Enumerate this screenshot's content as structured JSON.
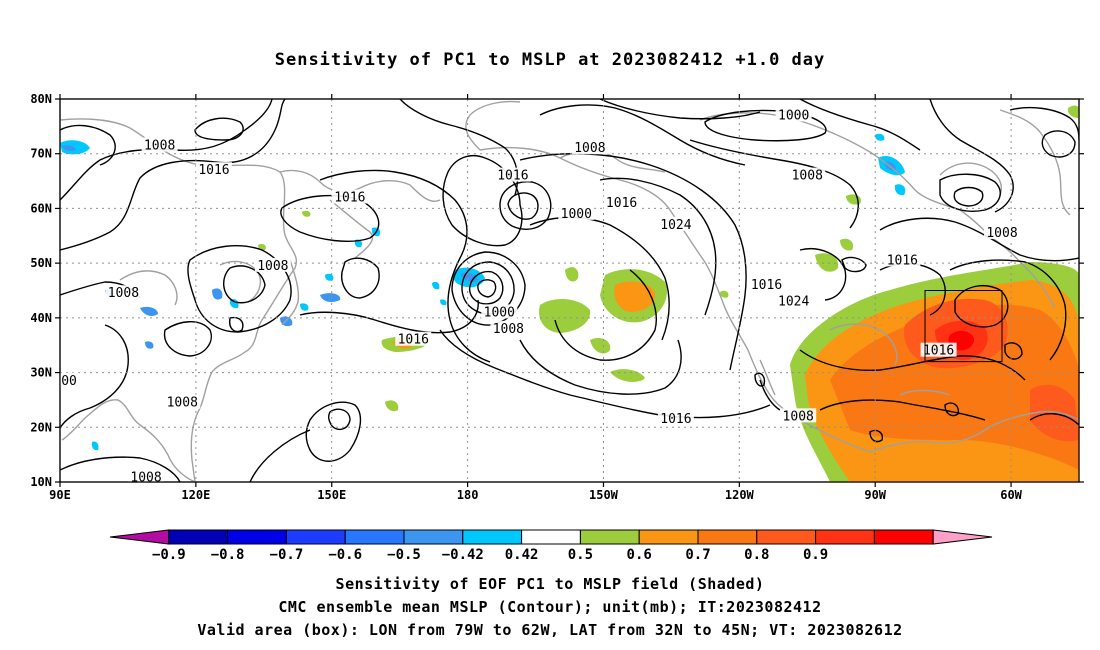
{
  "title": "Sensitivity of PC1 to MSLP at 2023082412 +1.0 day",
  "map": {
    "lat_ticks": [
      "80N",
      "70N",
      "60N",
      "50N",
      "40N",
      "30N",
      "20N",
      "10N"
    ],
    "lon_ticks": [
      "90E",
      "120E",
      "150E",
      "180",
      "150W",
      "120W",
      "90W",
      "60W"
    ],
    "contour_labels": [
      {
        "text": "1008",
        "lon": 112,
        "lat": 71.5
      },
      {
        "text": "1016",
        "lon": 124,
        "lat": 67
      },
      {
        "text": "1008",
        "lon": 104,
        "lat": 44.5
      },
      {
        "text": "1008",
        "lon": 137,
        "lat": 49.5
      },
      {
        "text": "1016",
        "lon": 154,
        "lat": 62
      },
      {
        "text": "1016",
        "lon": 168,
        "lat": 36
      },
      {
        "text": "1016",
        "lon": 190,
        "lat": 66
      },
      {
        "text": "1008",
        "lon": 207,
        "lat": 71
      },
      {
        "text": "1000",
        "lon": 204,
        "lat": 59
      },
      {
        "text": "1000",
        "lon": 187,
        "lat": 41
      },
      {
        "text": "1008",
        "lon": 189,
        "lat": 38
      },
      {
        "text": "1016",
        "lon": 214,
        "lat": 61
      },
      {
        "text": "1024",
        "lon": 226,
        "lat": 57
      },
      {
        "text": "1016",
        "lon": 226,
        "lat": 21.5
      },
      {
        "text": "1000",
        "lon": 252,
        "lat": 77
      },
      {
        "text": "1008",
        "lon": 255,
        "lat": 66
      },
      {
        "text": "1016",
        "lon": 246,
        "lat": 46
      },
      {
        "text": "1024",
        "lon": 252,
        "lat": 43
      },
      {
        "text": "1008",
        "lon": 253,
        "lat": 22
      },
      {
        "text": "1016",
        "lon": 276,
        "lat": 50.5
      },
      {
        "text": "1008",
        "lon": 298,
        "lat": 55.5
      },
      {
        "text": "1016",
        "lon": 284,
        "lat": 34
      },
      {
        "text": "1008",
        "lon": 117,
        "lat": 24.5
      },
      {
        "text": "1008",
        "lon": 109,
        "lat": 10.8
      },
      {
        "text": "00",
        "lon": 92,
        "lat": 28.5
      }
    ],
    "valid_box": {
      "lon_min": 281,
      "lon_max": 298,
      "lat_min": 32,
      "lat_max": 45
    }
  },
  "colorbar": {
    "colors": [
      "#b40ba0",
      "#0000b4",
      "#0000e6",
      "#1e3cff",
      "#2878ff",
      "#3c96f0",
      "#00c8ff",
      "#ffffff",
      "#9ccd3c",
      "#fa9614",
      "#fa7814",
      "#ff5a1e",
      "#ff3214",
      "#ff0000",
      "#ffa0c8"
    ],
    "labels": [
      "−0.9",
      "−0.8",
      "−0.7",
      "−0.6",
      "−0.5",
      "−0.42",
      "0.42",
      "0.5",
      "0.6",
      "0.7",
      "0.8",
      "0.9"
    ]
  },
  "captions": {
    "line1": "Sensitivity of EOF PC1 to MSLP field (Shaded)",
    "line2": "CMC ensemble mean MSLP (Contour); unit(mb); IT:2023082412",
    "line3": "Valid area (box): LON from 79W to 62W, LAT from 32N to 45N; VT: 2023082612"
  }
}
